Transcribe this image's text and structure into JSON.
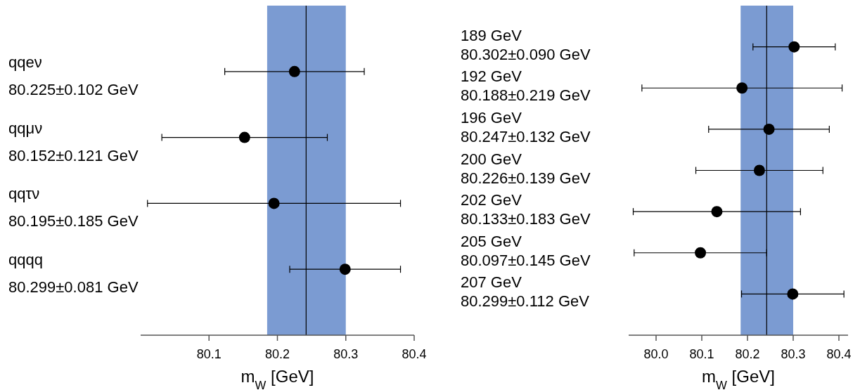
{
  "chart_data": [
    {
      "type": "scatter",
      "orientation": "horizontal",
      "categories": [
        "qqeν\n80.225±0.102 GeV",
        "qqμν\n80.152±0.121 GeV",
        "qqτν\n80.195±0.185 GeV",
        "qqqq\n80.299±0.081 GeV"
      ],
      "series": [
        {
          "color": "#000000",
          "values": [
            80.225,
            80.152,
            80.195,
            80.299
          ],
          "errors": [
            0.102,
            0.121,
            0.185,
            0.081
          ]
        }
      ],
      "xlim": [
        80.0,
        80.4
      ],
      "xticks": [
        80.1,
        80.2,
        80.3,
        80.4
      ],
      "xlabel": "m$_{W}$ [GeV]",
      "marker": "circle",
      "grid": false,
      "bands": [
        {
          "axis": "x",
          "from": 80.185,
          "to": 80.3,
          "color": "#7b9bd2"
        }
      ],
      "ref_lines": [
        {
          "axis": "x",
          "value": 80.242,
          "color": "#000000"
        }
      ]
    },
    {
      "type": "scatter",
      "orientation": "horizontal",
      "categories": [
        "189 GeV\n80.302±0.090 GeV",
        "192 GeV\n80.188±0.219 GeV",
        "196 GeV\n80.247±0.132 GeV",
        "200 GeV\n80.226±0.139 GeV",
        "202 GeV\n80.133±0.183 GeV",
        "205 GeV\n80.097±0.145 GeV",
        "207 GeV\n80.299±0.112 GeV"
      ],
      "series": [
        {
          "color": "#000000",
          "values": [
            80.302,
            80.188,
            80.247,
            80.226,
            80.133,
            80.097,
            80.299
          ],
          "errors": [
            0.09,
            0.219,
            0.132,
            0.139,
            0.183,
            0.145,
            0.112
          ]
        }
      ],
      "xlim": [
        79.94,
        80.42
      ],
      "xticks": [
        {
          "value": 80.0,
          "label": "80.0"
        },
        80.1,
        80.2,
        80.3,
        80.4
      ],
      "xlabel": "m$_{W}$ [GeV]",
      "marker": "circle",
      "grid": false,
      "bands": [
        {
          "axis": "x",
          "from": 80.185,
          "to": 80.3,
          "color": "#7b9bd2"
        }
      ],
      "ref_lines": [
        {
          "axis": "x",
          "value": 80.242,
          "color": "#000000"
        }
      ]
    }
  ]
}
